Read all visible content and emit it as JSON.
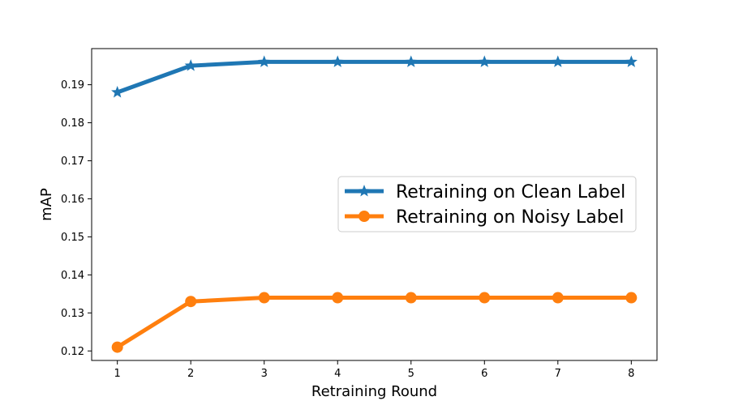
{
  "chart_data": {
    "type": "line",
    "title": "",
    "xlabel": "Retraining Round",
    "ylabel": "mAP",
    "x": [
      1,
      2,
      3,
      4,
      5,
      6,
      7,
      8
    ],
    "xlim": [
      0.65,
      8.35
    ],
    "ylim": [
      0.1175,
      0.1995
    ],
    "xticks": [
      1,
      2,
      3,
      4,
      5,
      6,
      7,
      8
    ],
    "yticks": [
      0.12,
      0.13,
      0.14,
      0.15,
      0.16,
      0.17,
      0.18,
      0.19
    ],
    "ytick_labels": [
      "0.12",
      "0.13",
      "0.14",
      "0.15",
      "0.16",
      "0.17",
      "0.18",
      "0.19"
    ],
    "grid": false,
    "legend_position": "center-right",
    "series": [
      {
        "name": "Retraining on Clean Label",
        "values": [
          0.188,
          0.195,
          0.196,
          0.196,
          0.196,
          0.196,
          0.196,
          0.196
        ],
        "color": "#1f77b4",
        "marker": "star"
      },
      {
        "name": "Retraining on Noisy Label",
        "values": [
          0.121,
          0.133,
          0.134,
          0.134,
          0.134,
          0.134,
          0.134,
          0.134
        ],
        "color": "#ff7f0e",
        "marker": "circle"
      }
    ]
  }
}
